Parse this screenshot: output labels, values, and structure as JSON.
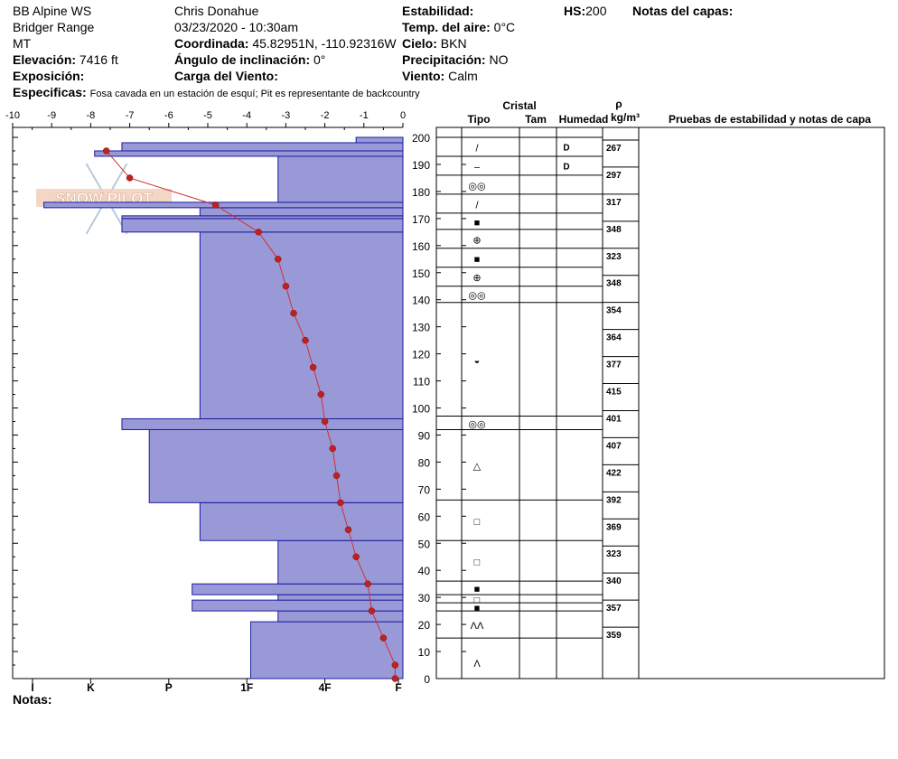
{
  "header": {
    "location": "BB Alpine WS",
    "range": "Bridger Range",
    "state": "MT",
    "elevation_label": "Elevación:",
    "elevation": "7416 ft",
    "aspect_label": "Exposición:",
    "observer": "Chris Donahue",
    "datetime": "03/23/2020 - 10:30am",
    "coord_label": "Coordinada:",
    "coord": "45.82951N, -110.92316W",
    "incline_label": "Ángulo de inclinación:",
    "incline": "0°",
    "wind_load_label": "Carga del Viento:",
    "stability_label": "Estabilidad:",
    "air_temp_label": "Temp. del aire:",
    "air_temp": "0°C",
    "sky_label": "Cielo:",
    "sky": "BKN",
    "precip_label": "Precipitación:",
    "precip": "NO",
    "wind_label": "Viento:",
    "wind": "Calm",
    "hs_label": "HS:",
    "hs": "200",
    "layer_notes_label": "Notas del capas:",
    "specifics_label": "Especificas:",
    "specifics": "Fosa cavada en un estación de esquí; Pit es representante de backcountry",
    "notes_label": "Notas:"
  },
  "logo_text": "SNOW PILOT",
  "colors": {
    "hardness_fill": "#9999d8",
    "hardness_stroke": "#1c1ca0",
    "temp": "#c02020",
    "temp_line": "#d03030"
  },
  "chart_data": {
    "type": "bar",
    "x_temp_ticks": [
      "-10",
      "-9",
      "-8",
      "-7",
      "-6",
      "-5",
      "-4",
      "-3",
      "-2",
      "-1",
      "0"
    ],
    "hardness_ticks": [
      "I",
      "K",
      "P",
      "1F",
      "4F",
      "F"
    ],
    "hardness_tick_values": [
      -10,
      -8,
      -6,
      -4,
      -2,
      0
    ],
    "ylim": [
      0,
      200
    ],
    "y_ticks": [
      0,
      10,
      20,
      30,
      40,
      50,
      60,
      70,
      80,
      90,
      100,
      110,
      120,
      130,
      140,
      150,
      160,
      170,
      180,
      190,
      200
    ],
    "layers": [
      {
        "bottom": 0,
        "top": 21,
        "hardness": -3.9
      },
      {
        "bottom": 21,
        "top": 25,
        "hardness": -3.2
      },
      {
        "bottom": 25,
        "top": 29,
        "hardness": -5.4
      },
      {
        "bottom": 29,
        "top": 31,
        "hardness": -3.2
      },
      {
        "bottom": 31,
        "top": 35,
        "hardness": -5.4
      },
      {
        "bottom": 35,
        "top": 51,
        "hardness": -3.2
      },
      {
        "bottom": 51,
        "top": 65,
        "hardness": -5.2
      },
      {
        "bottom": 65,
        "top": 92,
        "hardness": -6.5
      },
      {
        "bottom": 92,
        "top": 96,
        "hardness": -7.2
      },
      {
        "bottom": 96,
        "top": 165,
        "hardness": -5.2
      },
      {
        "bottom": 165,
        "top": 170,
        "hardness": -7.2
      },
      {
        "bottom": 170,
        "top": 171,
        "hardness": -7.2
      },
      {
        "bottom": 171,
        "top": 174,
        "hardness": -5.2
      },
      {
        "bottom": 174,
        "top": 176,
        "hardness": -9.2
      },
      {
        "bottom": 176,
        "top": 193,
        "hardness": -3.2
      },
      {
        "bottom": 193,
        "top": 195,
        "hardness": -7.9
      },
      {
        "bottom": 195,
        "top": 198,
        "hardness": -7.2
      },
      {
        "bottom": 198,
        "top": 200,
        "hardness": -1.2
      }
    ],
    "temp_profile": [
      {
        "h": 0,
        "t": -0.2
      },
      {
        "h": 5,
        "t": -0.2
      },
      {
        "h": 15,
        "t": -0.5
      },
      {
        "h": 25,
        "t": -0.8
      },
      {
        "h": 35,
        "t": -0.9
      },
      {
        "h": 45,
        "t": -1.2
      },
      {
        "h": 55,
        "t": -1.4
      },
      {
        "h": 65,
        "t": -1.6
      },
      {
        "h": 75,
        "t": -1.7
      },
      {
        "h": 85,
        "t": -1.8
      },
      {
        "h": 95,
        "t": -2.0
      },
      {
        "h": 105,
        "t": -2.1
      },
      {
        "h": 115,
        "t": -2.3
      },
      {
        "h": 125,
        "t": -2.5
      },
      {
        "h": 135,
        "t": -2.8
      },
      {
        "h": 145,
        "t": -3.0
      },
      {
        "h": 155,
        "t": -3.2
      },
      {
        "h": 165,
        "t": -3.7
      },
      {
        "h": 175,
        "t": -4.8
      },
      {
        "h": 185,
        "t": -7.0
      },
      {
        "h": 195,
        "t": -7.6
      }
    ]
  },
  "profile_table": {
    "title_crystal": "Cristal",
    "col_type": "Tipo",
    "col_size": "Tam",
    "col_moisture": "Humedad",
    "col_density_sym": "ρ",
    "col_density_unit": "kg/m³",
    "col_tests": "Pruebas de estabilidad y notas de capa",
    "y_ticks": [
      0,
      10,
      20,
      30,
      40,
      50,
      60,
      70,
      80,
      90,
      100,
      110,
      120,
      130,
      140,
      150,
      160,
      170,
      180,
      190,
      200
    ],
    "layer_rows": [
      {
        "bottom": 15,
        "top": 25,
        "symbol": "ΛΛ",
        "moisture": ""
      },
      {
        "bottom": 25,
        "top": 28,
        "symbol": "■",
        "moisture": ""
      },
      {
        "bottom": 28,
        "top": 31,
        "symbol": "□",
        "moisture": ""
      },
      {
        "bottom": 31,
        "top": 36,
        "symbol": "■",
        "moisture": ""
      },
      {
        "bottom": 36,
        "top": 51,
        "symbol": "□",
        "moisture": ""
      },
      {
        "bottom": 51,
        "top": 66,
        "symbol": "□",
        "moisture": ""
      },
      {
        "bottom": 66,
        "top": 92,
        "symbol": "△",
        "moisture": ""
      },
      {
        "bottom": 92,
        "top": 97,
        "symbol": "◎◎",
        "moisture": ""
      },
      {
        "bottom": 97,
        "top": 139,
        "symbol": "◒",
        "moisture": ""
      },
      {
        "bottom": 139,
        "top": 145,
        "symbol": "◎◎",
        "moisture": ""
      },
      {
        "bottom": 145,
        "top": 152,
        "symbol": "⊕",
        "moisture": ""
      },
      {
        "bottom": 152,
        "top": 159,
        "symbol": "■",
        "moisture": ""
      },
      {
        "bottom": 159,
        "top": 166,
        "symbol": "⊕",
        "moisture": ""
      },
      {
        "bottom": 166,
        "top": 172,
        "symbol": "■",
        "moisture": ""
      },
      {
        "bottom": 172,
        "top": 179,
        "symbol": "/",
        "moisture": ""
      },
      {
        "bottom": 179,
        "top": 186,
        "symbol": "◎◎",
        "moisture": ""
      },
      {
        "bottom": 186,
        "top": 193,
        "symbol": "–",
        "moisture": "D"
      },
      {
        "bottom": 193,
        "top": 200,
        "symbol": "/",
        "moisture": "D"
      }
    ],
    "bottom_symbol": "Λ",
    "densities": [
      {
        "h": 196,
        "v": "267"
      },
      {
        "h": 186,
        "v": "297"
      },
      {
        "h": 176,
        "v": "317"
      },
      {
        "h": 166,
        "v": "348"
      },
      {
        "h": 156,
        "v": "323"
      },
      {
        "h": 146,
        "v": "348"
      },
      {
        "h": 136,
        "v": "354"
      },
      {
        "h": 126,
        "v": "364"
      },
      {
        "h": 116,
        "v": "377"
      },
      {
        "h": 106,
        "v": "415"
      },
      {
        "h": 96,
        "v": "401"
      },
      {
        "h": 86,
        "v": "407"
      },
      {
        "h": 76,
        "v": "422"
      },
      {
        "h": 66,
        "v": "392"
      },
      {
        "h": 56,
        "v": "369"
      },
      {
        "h": 46,
        "v": "323"
      },
      {
        "h": 36,
        "v": "340"
      },
      {
        "h": 26,
        "v": "357"
      },
      {
        "h": 16,
        "v": "359"
      }
    ]
  }
}
